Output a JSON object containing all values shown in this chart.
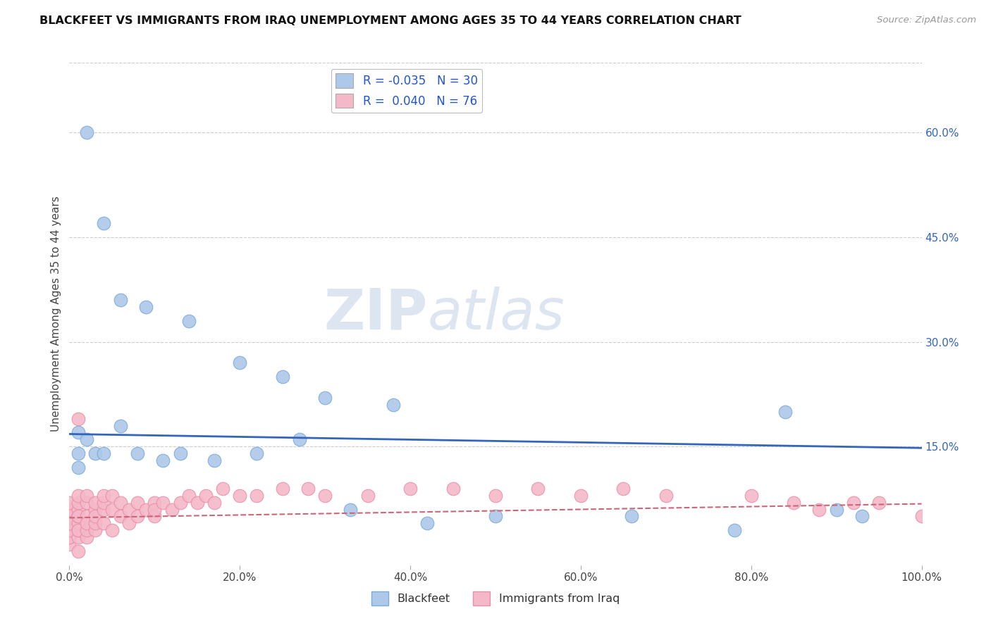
{
  "title": "BLACKFEET VS IMMIGRANTS FROM IRAQ UNEMPLOYMENT AMONG AGES 35 TO 44 YEARS CORRELATION CHART",
  "source": "Source: ZipAtlas.com",
  "ylabel": "Unemployment Among Ages 35 to 44 years",
  "xlim": [
    0.0,
    1.0
  ],
  "ylim": [
    -0.02,
    0.7
  ],
  "xticks": [
    0.0,
    0.2,
    0.4,
    0.6,
    0.8,
    1.0
  ],
  "xtick_labels": [
    "0.0%",
    "20.0%",
    "40.0%",
    "60.0%",
    "80.0%",
    "100.0%"
  ],
  "yticks": [
    0.15,
    0.3,
    0.45,
    0.6
  ],
  "ytick_labels": [
    "15.0%",
    "30.0%",
    "45.0%",
    "60.0%"
  ],
  "grid_color": "#cccccc",
  "background_color": "#ffffff",
  "blackfeet_color": "#adc8e8",
  "iraq_color": "#f5b8c8",
  "blackfeet_edge": "#7aabda",
  "iraq_edge": "#e890aa",
  "blackfeet_line_color": "#3366bb",
  "iraq_line_color": "#cc6677",
  "legend_R_blackfeet": "-0.035",
  "legend_N_blackfeet": "30",
  "legend_R_iraq": "0.040",
  "legend_N_iraq": "76",
  "blackfeet_x": [
    0.02,
    0.04,
    0.06,
    0.09,
    0.14,
    0.2,
    0.25,
    0.3,
    0.38,
    0.84,
    0.9,
    0.93,
    0.01,
    0.01,
    0.02,
    0.03,
    0.04,
    0.06,
    0.08,
    0.11,
    0.13,
    0.17,
    0.22,
    0.27,
    0.33,
    0.42,
    0.5,
    0.66,
    0.78,
    0.01
  ],
  "blackfeet_y": [
    0.6,
    0.47,
    0.36,
    0.35,
    0.33,
    0.27,
    0.25,
    0.22,
    0.21,
    0.2,
    0.06,
    0.05,
    0.17,
    0.14,
    0.16,
    0.14,
    0.14,
    0.18,
    0.14,
    0.13,
    0.14,
    0.13,
    0.14,
    0.16,
    0.06,
    0.04,
    0.05,
    0.05,
    0.03,
    0.12
  ],
  "iraq_x": [
    0.0,
    0.0,
    0.0,
    0.0,
    0.0,
    0.0,
    0.0,
    0.0,
    0.0,
    0.0,
    0.01,
    0.01,
    0.01,
    0.01,
    0.01,
    0.01,
    0.01,
    0.01,
    0.01,
    0.02,
    0.02,
    0.02,
    0.02,
    0.02,
    0.02,
    0.03,
    0.03,
    0.03,
    0.03,
    0.03,
    0.04,
    0.04,
    0.04,
    0.04,
    0.05,
    0.05,
    0.05,
    0.06,
    0.06,
    0.07,
    0.07,
    0.08,
    0.08,
    0.09,
    0.1,
    0.1,
    0.1,
    0.11,
    0.12,
    0.13,
    0.14,
    0.15,
    0.16,
    0.17,
    0.18,
    0.2,
    0.22,
    0.25,
    0.28,
    0.3,
    0.35,
    0.4,
    0.45,
    0.5,
    0.55,
    0.6,
    0.65,
    0.7,
    0.8,
    0.85,
    0.88,
    0.92,
    0.95,
    1.0,
    0.01,
    0.01
  ],
  "iraq_y": [
    0.01,
    0.02,
    0.03,
    0.04,
    0.05,
    0.06,
    0.07,
    0.02,
    0.03,
    0.04,
    0.02,
    0.03,
    0.04,
    0.05,
    0.06,
    0.07,
    0.08,
    0.03,
    0.05,
    0.02,
    0.03,
    0.05,
    0.07,
    0.08,
    0.04,
    0.03,
    0.04,
    0.06,
    0.07,
    0.05,
    0.04,
    0.06,
    0.07,
    0.08,
    0.03,
    0.06,
    0.08,
    0.05,
    0.07,
    0.04,
    0.06,
    0.05,
    0.07,
    0.06,
    0.05,
    0.07,
    0.06,
    0.07,
    0.06,
    0.07,
    0.08,
    0.07,
    0.08,
    0.07,
    0.09,
    0.08,
    0.08,
    0.09,
    0.09,
    0.08,
    0.08,
    0.09,
    0.09,
    0.08,
    0.09,
    0.08,
    0.09,
    0.08,
    0.08,
    0.07,
    0.06,
    0.07,
    0.07,
    0.05,
    0.19,
    0.0
  ],
  "blackfeet_trendline_start_y": 0.168,
  "blackfeet_trendline_end_y": 0.148,
  "iraq_trendline_start_y": 0.048,
  "iraq_trendline_end_y": 0.068
}
